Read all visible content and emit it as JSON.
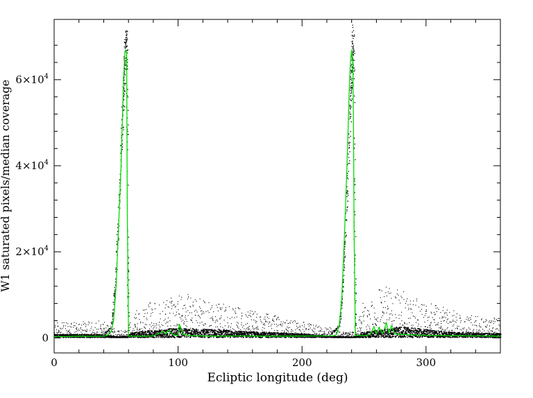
{
  "chart_data": {
    "type": "scatter",
    "xlabel": "Ecliptic longitude (deg)",
    "ylabel": "W1 saturated pixels/median coverage",
    "xlim": [
      0,
      360
    ],
    "ylim": [
      -3500,
      74000
    ],
    "x_ticks": [
      0,
      100,
      200,
      300
    ],
    "x_tick_labels": [
      "0",
      "100",
      "200",
      "300"
    ],
    "y_ticks": [
      0,
      20000,
      40000,
      60000
    ],
    "y_tick_labels": [
      {
        "base": "0",
        "exp": ""
      },
      {
        "base": "2×10",
        "exp": "4"
      },
      {
        "base": "4×10",
        "exp": "4"
      },
      {
        "base": "6×10",
        "exp": "4"
      }
    ],
    "grid": false,
    "colors": {
      "points": "#000000",
      "median_line": "#00dd00"
    },
    "series": [
      {
        "kind": "points",
        "baseline": [
          [
            0,
            1500
          ],
          [
            40,
            1400
          ],
          [
            46,
            800
          ],
          [
            50,
            300
          ],
          [
            58,
            300
          ],
          [
            63,
            2500
          ],
          [
            100,
            4500
          ],
          [
            150,
            3000
          ],
          [
            200,
            1700
          ],
          [
            225,
            600
          ],
          [
            230,
            300
          ],
          [
            243,
            300
          ],
          [
            248,
            2500
          ],
          [
            280,
            5000
          ],
          [
            320,
            2500
          ],
          [
            360,
            1800
          ]
        ],
        "upper_envelope": [
          [
            0,
            3500
          ],
          [
            40,
            3800
          ],
          [
            50,
            1500
          ],
          [
            58,
            1500
          ],
          [
            63,
            6000
          ],
          [
            80,
            8500
          ],
          [
            100,
            10500
          ],
          [
            130,
            8000
          ],
          [
            170,
            5500
          ],
          [
            200,
            3500
          ],
          [
            225,
            2000
          ],
          [
            230,
            1200
          ],
          [
            243,
            1200
          ],
          [
            248,
            8000
          ],
          [
            265,
            12000
          ],
          [
            280,
            11000
          ],
          [
            300,
            8000
          ],
          [
            340,
            5000
          ],
          [
            360,
            4500
          ]
        ],
        "peaks": [
          {
            "x_left": [
              38,
              46,
              49,
              52,
              54,
              55.5,
              56.5,
              57.5,
              58.5
            ],
            "y_left": [
              600,
              2500,
              12000,
              30000,
              45000,
              56000,
              64000,
              69000,
              68000
            ],
            "x_right": [
              58.5,
              59.2,
              59.8
            ],
            "y_right": [
              68000,
              20000,
              400
            ]
          },
          {
            "x_left": [
              222,
              230,
              233,
              236,
              237.5,
              239,
              240,
              240.8,
              241.5
            ],
            "y_left": [
              600,
              3000,
              14000,
              32000,
              46000,
              57000,
              65000,
              70000,
              68000
            ],
            "x_right": [
              241.5,
              242.3,
              243
            ],
            "y_right": [
              68000,
              20000,
              400
            ]
          }
        ]
      },
      {
        "kind": "line",
        "x": [
          0,
          10,
          20,
          30,
          40,
          43,
          46,
          48,
          50,
          52,
          54,
          55,
          56,
          57,
          58,
          58.5,
          59,
          60,
          70,
          80,
          88,
          90,
          92,
          96,
          100,
          101,
          104,
          110,
          130,
          150,
          170,
          190,
          210,
          225,
          228,
          230,
          232,
          234,
          236,
          237,
          238,
          239,
          240,
          241,
          241.5,
          242,
          243,
          250,
          255,
          258,
          260,
          262,
          265,
          268,
          270,
          272,
          275,
          280,
          290,
          300,
          320,
          340,
          360
        ],
        "y": [
          300,
          300,
          400,
          350,
          400,
          600,
          1500,
          4000,
          12000,
          26000,
          40000,
          50000,
          60000,
          66000,
          67000,
          66000,
          30000,
          400,
          400,
          450,
          1500,
          800,
          1800,
          700,
          600,
          3200,
          800,
          500,
          400,
          450,
          400,
          400,
          450,
          450,
          800,
          3000,
          9000,
          22000,
          38000,
          47000,
          57000,
          64000,
          67000,
          64000,
          50000,
          25000,
          600,
          500,
          800,
          2600,
          900,
          2400,
          1000,
          3500,
          1200,
          2800,
          900,
          800,
          700,
          600,
          500,
          450,
          400
        ]
      }
    ]
  }
}
